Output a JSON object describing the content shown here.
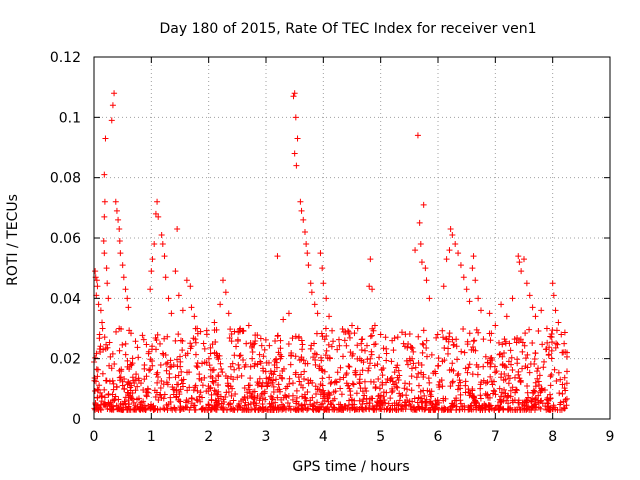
{
  "chart_data": {
    "type": "scatter",
    "title": "Day 180 of 2015, Rate Of TEC Index for receiver ven1",
    "xlabel": "GPS time / hours",
    "ylabel": "ROTI / TECUs",
    "xlim": [
      0,
      9
    ],
    "ylim": [
      0,
      0.12
    ],
    "xticks": [
      0,
      1,
      2,
      3,
      4,
      5,
      6,
      7,
      8,
      9
    ],
    "xtick_labels": [
      "0",
      "1",
      "2",
      "3",
      "4",
      "5",
      "6",
      "7",
      "8",
      "9"
    ],
    "yticks": [
      0,
      0.02,
      0.04,
      0.06,
      0.08,
      0.1,
      0.12
    ],
    "ytick_labels": [
      "0",
      "0.02",
      "0.04",
      "0.06",
      "0.08",
      "0.1",
      "0.12"
    ],
    "grid": true,
    "marker": "+",
    "series_color": "#ff0000",
    "bulk_data": {
      "description": "dense scatter of ROTI samples",
      "x_range": [
        0,
        8.25
      ],
      "typical_range": [
        0.003,
        0.03
      ]
    },
    "series": [
      {
        "name": "ROTI",
        "points": [
          [
            0.02,
            0.049
          ],
          [
            0.03,
            0.047
          ],
          [
            0.05,
            0.046
          ],
          [
            0.06,
            0.044
          ],
          [
            0.04,
            0.041
          ],
          [
            0.08,
            0.038
          ],
          [
            0.12,
            0.036
          ],
          [
            0.14,
            0.032
          ],
          [
            0.15,
            0.03
          ],
          [
            0.17,
            0.059
          ],
          [
            0.18,
            0.055
          ],
          [
            0.18,
            0.067
          ],
          [
            0.19,
            0.072
          ],
          [
            0.18,
            0.081
          ],
          [
            0.2,
            0.093
          ],
          [
            0.22,
            0.05
          ],
          [
            0.23,
            0.045
          ],
          [
            0.25,
            0.04
          ],
          [
            0.31,
            0.099
          ],
          [
            0.33,
            0.104
          ],
          [
            0.35,
            0.108
          ],
          [
            0.38,
            0.072
          ],
          [
            0.4,
            0.069
          ],
          [
            0.42,
            0.066
          ],
          [
            0.44,
            0.063
          ],
          [
            0.45,
            0.059
          ],
          [
            0.46,
            0.055
          ],
          [
            0.5,
            0.051
          ],
          [
            0.52,
            0.047
          ],
          [
            0.55,
            0.043
          ],
          [
            0.58,
            0.04
          ],
          [
            0.6,
            0.037
          ],
          [
            0.98,
            0.043
          ],
          [
            1.0,
            0.049
          ],
          [
            1.02,
            0.053
          ],
          [
            1.05,
            0.058
          ],
          [
            1.08,
            0.068
          ],
          [
            1.1,
            0.072
          ],
          [
            1.12,
            0.067
          ],
          [
            1.18,
            0.061
          ],
          [
            1.2,
            0.058
          ],
          [
            1.23,
            0.054
          ],
          [
            1.25,
            0.047
          ],
          [
            1.3,
            0.04
          ],
          [
            1.35,
            0.035
          ],
          [
            1.42,
            0.049
          ],
          [
            1.45,
            0.063
          ],
          [
            1.48,
            0.041
          ],
          [
            1.55,
            0.036
          ],
          [
            1.62,
            0.046
          ],
          [
            1.68,
            0.044
          ],
          [
            1.7,
            0.037
          ],
          [
            1.75,
            0.034
          ],
          [
            1.8,
            0.03
          ],
          [
            2.1,
            0.032
          ],
          [
            2.2,
            0.038
          ],
          [
            2.25,
            0.046
          ],
          [
            2.3,
            0.042
          ],
          [
            2.35,
            0.035
          ],
          [
            2.45,
            0.029
          ],
          [
            2.55,
            0.03
          ],
          [
            2.7,
            0.031
          ],
          [
            2.8,
            0.025
          ],
          [
            3.2,
            0.054
          ],
          [
            3.3,
            0.033
          ],
          [
            3.4,
            0.035
          ],
          [
            3.48,
            0.107
          ],
          [
            3.5,
            0.108
          ],
          [
            3.52,
            0.1
          ],
          [
            3.55,
            0.093
          ],
          [
            3.5,
            0.088
          ],
          [
            3.53,
            0.084
          ],
          [
            3.6,
            0.072
          ],
          [
            3.62,
            0.069
          ],
          [
            3.65,
            0.066
          ],
          [
            3.68,
            0.062
          ],
          [
            3.7,
            0.058
          ],
          [
            3.72,
            0.055
          ],
          [
            3.74,
            0.051
          ],
          [
            3.78,
            0.045
          ],
          [
            3.8,
            0.042
          ],
          [
            3.85,
            0.038
          ],
          [
            3.9,
            0.035
          ],
          [
            3.95,
            0.055
          ],
          [
            3.98,
            0.05
          ],
          [
            4.0,
            0.045
          ],
          [
            4.05,
            0.04
          ],
          [
            4.1,
            0.034
          ],
          [
            4.5,
            0.031
          ],
          [
            4.6,
            0.03
          ],
          [
            4.8,
            0.044
          ],
          [
            4.82,
            0.053
          ],
          [
            4.85,
            0.043
          ],
          [
            4.9,
            0.031
          ],
          [
            5.0,
            0.028
          ],
          [
            5.2,
            0.026
          ],
          [
            5.4,
            0.025
          ],
          [
            5.6,
            0.056
          ],
          [
            5.65,
            0.094
          ],
          [
            5.68,
            0.065
          ],
          [
            5.7,
            0.058
          ],
          [
            5.72,
            0.052
          ],
          [
            5.75,
            0.071
          ],
          [
            5.78,
            0.05
          ],
          [
            5.8,
            0.046
          ],
          [
            5.85,
            0.04
          ],
          [
            6.1,
            0.044
          ],
          [
            6.15,
            0.053
          ],
          [
            6.2,
            0.056
          ],
          [
            6.22,
            0.063
          ],
          [
            6.25,
            0.061
          ],
          [
            6.3,
            0.058
          ],
          [
            6.35,
            0.055
          ],
          [
            6.4,
            0.051
          ],
          [
            6.45,
            0.047
          ],
          [
            6.5,
            0.043
          ],
          [
            6.55,
            0.039
          ],
          [
            6.6,
            0.05
          ],
          [
            6.62,
            0.054
          ],
          [
            6.65,
            0.046
          ],
          [
            6.7,
            0.04
          ],
          [
            6.75,
            0.036
          ],
          [
            6.9,
            0.035
          ],
          [
            7.0,
            0.031
          ],
          [
            7.1,
            0.038
          ],
          [
            7.2,
            0.034
          ],
          [
            7.3,
            0.04
          ],
          [
            7.4,
            0.054
          ],
          [
            7.42,
            0.052
          ],
          [
            7.45,
            0.049
          ],
          [
            7.5,
            0.053
          ],
          [
            7.55,
            0.045
          ],
          [
            7.6,
            0.041
          ],
          [
            7.65,
            0.037
          ],
          [
            7.7,
            0.034
          ],
          [
            7.8,
            0.036
          ],
          [
            7.9,
            0.03
          ],
          [
            8.0,
            0.045
          ],
          [
            8.02,
            0.041
          ],
          [
            8.05,
            0.036
          ],
          [
            8.1,
            0.032
          ],
          [
            8.15,
            0.028
          ],
          [
            8.2,
            0.025
          ],
          [
            8.25,
            0.022
          ]
        ]
      }
    ]
  }
}
